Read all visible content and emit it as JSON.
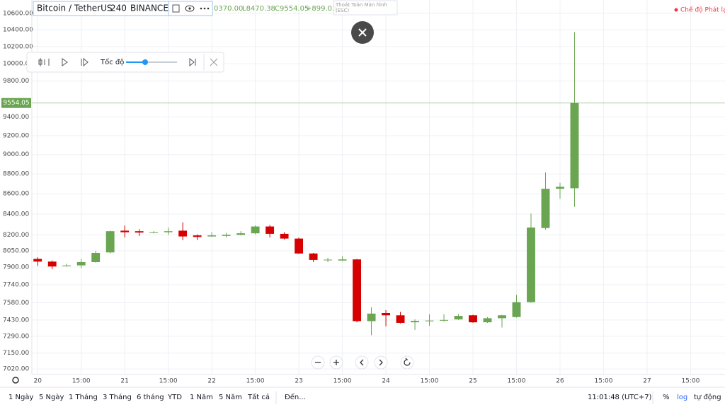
{
  "chart_data": {
    "type": "candlestick",
    "title": "Bitcoin / TetherUS",
    "interval": "240",
    "exchange": "BINANCE",
    "header": [
      "0370.00",
      "L8470.38",
      "C9554.05",
      "+899.03"
    ],
    "open": [
      7975,
      7950,
      7910,
      7915,
      7945,
      8035,
      8240,
      8235,
      8225,
      8225,
      8240,
      8195,
      8185,
      8190,
      8200,
      8215,
      8280,
      8210,
      8165,
      8025,
      7965,
      7960,
      7970,
      7420,
      7490,
      7470,
      7410,
      7420,
      7425,
      7435,
      7470,
      7410,
      7445,
      7455,
      7585,
      8265,
      8650,
      8655.02
    ],
    "high": [
      7990,
      7960,
      7930,
      7975,
      8050,
      8240,
      8290,
      8255,
      8235,
      8270,
      8320,
      8205,
      8225,
      8220,
      8235,
      8290,
      8295,
      8225,
      8175,
      8030,
      7985,
      8000,
      7975,
      7540,
      7515,
      7500,
      7435,
      7480,
      7480,
      7480,
      7475,
      7455,
      7475,
      7650,
      8405,
      8815,
      8710,
      10370
    ],
    "low": [
      7910,
      7880,
      7905,
      7890,
      7940,
      8025,
      8175,
      8190,
      8215,
      8200,
      8150,
      8150,
      8180,
      8175,
      8195,
      8205,
      8175,
      8155,
      8020,
      7945,
      7945,
      7955,
      7410,
      7300,
      7375,
      7400,
      7345,
      7380,
      7415,
      7430,
      7405,
      7405,
      7365,
      7450,
      7580,
      8250,
      8550,
      8470.38
    ],
    "close": [
      7950,
      7905,
      7915,
      7945,
      8030,
      8235,
      8225,
      8222,
      8225,
      8235,
      8185,
      8180,
      8195,
      8200,
      8215,
      8280,
      8210,
      8165,
      8025,
      7965,
      7968,
      7970,
      7420,
      7485,
      7470,
      7405,
      7422,
      7425,
      7430,
      7465,
      7410,
      7445,
      7470,
      7585,
      8270,
      8650,
      8670,
      9554.05
    ],
    "up_color": "#6aa551",
    "down_color": "#d50000",
    "log_scale": true,
    "grid": true,
    "ylim": [
      6975,
      10765
    ],
    "yticks": [
      {
        "value": 10600,
        "label": "10600.00"
      },
      {
        "value": 10400,
        "label": "10400.00"
      },
      {
        "value": 10200,
        "label": "10200.00"
      },
      {
        "value": 10000,
        "label": "10000.00"
      },
      {
        "value": 9800,
        "label": "9800.00"
      },
      {
        "value": 9400,
        "label": "9400.00"
      },
      {
        "value": 9200,
        "label": "9200.00"
      },
      {
        "value": 9000,
        "label": "9000.00"
      },
      {
        "value": 8800,
        "label": "8800.00"
      },
      {
        "value": 8600,
        "label": "8600.00"
      },
      {
        "value": 8400,
        "label": "8400.00"
      },
      {
        "value": 8200,
        "label": "8200.00"
      },
      {
        "value": 8050,
        "label": "8050.00"
      },
      {
        "value": 7900,
        "label": "7900.00"
      },
      {
        "value": 7740,
        "label": "7740.00"
      },
      {
        "value": 7580,
        "label": "7580.00"
      },
      {
        "value": 7430,
        "label": "7430.00"
      },
      {
        "value": 7290,
        "label": "7290.00"
      },
      {
        "value": 7150,
        "label": "7150.00"
      },
      {
        "value": 7020,
        "label": "7020.00"
      }
    ],
    "xlim": [
      -0.4,
      47.37
    ],
    "xticks": [
      {
        "value": 0,
        "label": "20"
      },
      {
        "value": 3,
        "label": "15:00"
      },
      {
        "value": 6,
        "label": "21"
      },
      {
        "value": 9,
        "label": "15:00"
      },
      {
        "value": 12,
        "label": "22"
      },
      {
        "value": 15,
        "label": "15:00"
      },
      {
        "value": 18,
        "label": "23"
      },
      {
        "value": 21,
        "label": "15:00"
      },
      {
        "value": 24,
        "label": "24"
      },
      {
        "value": 27,
        "label": "15:00"
      },
      {
        "value": 30,
        "label": "25"
      },
      {
        "value": 33,
        "label": "15:00"
      },
      {
        "value": 36,
        "label": "26"
      },
      {
        "value": 39,
        "label": "15:00"
      },
      {
        "value": 42,
        "label": "27"
      },
      {
        "value": 45,
        "label": "15:00"
      }
    ]
  },
  "ui": {
    "replay_mode": "Chế độ Phát lại",
    "exit_fullscreen": "Thoát Toàn Màn hình",
    "exit_key": "(ESC)",
    "speed": "Tốc độ",
    "ranges": [
      "1 Ngày",
      "5 Ngày",
      "1 Tháng",
      "3 Tháng",
      "6 tháng",
      "YTD",
      "1 Năm",
      "5 Năm",
      "Tất cả"
    ],
    "goto": "Đến...",
    "clock": "11:01:48 (UTC+7)",
    "percent": "%",
    "log": "log",
    "auto": "tự động"
  }
}
